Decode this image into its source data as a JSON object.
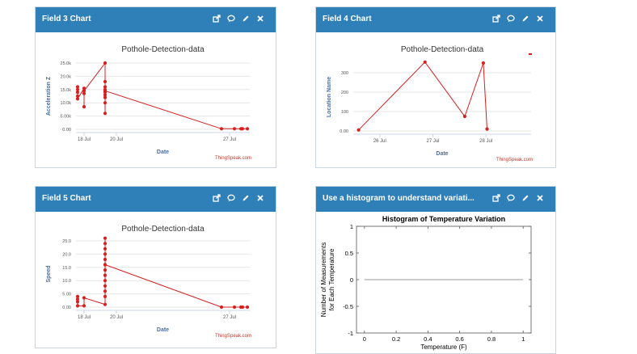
{
  "panels": [
    {
      "key": "f3",
      "title": "Field 3 Chart",
      "chart_data": {
        "type": "line",
        "title": "Pothole-Detection-data",
        "xlabel": "Date",
        "ylabel": "Acceleration Z",
        "credit": "ThingSpeak.com",
        "x_ticks": [
          {
            "label": "18 Jul",
            "x": 18
          },
          {
            "label": "20 Jul",
            "x": 20
          },
          {
            "label": "27 Jul",
            "x": 27
          }
        ],
        "y_ticks": [
          {
            "label": "0.00",
            "y": 0
          },
          {
            "label": "5.00k",
            "y": 5000
          },
          {
            "label": "10.0k",
            "y": 10000
          },
          {
            "label": "15.0k",
            "y": 15000
          },
          {
            "label": "20.0k",
            "y": 20000
          },
          {
            "label": "25.0k",
            "y": 25000
          }
        ],
        "xlim": [
          17.5,
          28.25
        ],
        "ylim": [
          0,
          25000
        ],
        "line_color": "#d62020",
        "points": [
          [
            17.6,
            16000
          ],
          [
            17.6,
            15000
          ],
          [
            17.6,
            14000
          ],
          [
            17.6,
            12500
          ],
          [
            17.6,
            11500
          ],
          [
            18.0,
            15500
          ],
          [
            18.0,
            14500
          ],
          [
            18.0,
            13500
          ],
          [
            18.0,
            8500
          ],
          [
            18.0,
            14500
          ],
          [
            19.3,
            25000
          ],
          [
            19.3,
            18000
          ],
          [
            19.3,
            16000
          ],
          [
            19.3,
            15000
          ],
          [
            19.3,
            14000
          ],
          [
            19.3,
            13000
          ],
          [
            19.3,
            12000
          ],
          [
            19.3,
            10000
          ],
          [
            19.3,
            6000
          ],
          [
            19.3,
            14500
          ],
          [
            26.5,
            200
          ],
          [
            27.3,
            200
          ],
          [
            27.7,
            200
          ],
          [
            27.8,
            200
          ],
          [
            28.1,
            200
          ]
        ]
      }
    },
    {
      "key": "f4",
      "title": "Field 4 Chart",
      "chart_data": {
        "type": "line",
        "title": "Pothole-Detection-data",
        "xlabel": "Date",
        "ylabel": "Location Name",
        "credit": "ThingSpeak.com",
        "x_ticks": [
          {
            "label": "26 Jul",
            "x": 26
          },
          {
            "label": "27 Jul",
            "x": 27
          },
          {
            "label": "28 Jul",
            "x": 28
          }
        ],
        "y_ticks": [
          {
            "label": "0.00",
            "y": 0
          },
          {
            "label": "100",
            "y": 100
          },
          {
            "label": "200",
            "y": 200
          },
          {
            "label": "300",
            "y": 300
          }
        ],
        "xlim": [
          25.5,
          28.85
        ],
        "ylim": [
          0,
          350
        ],
        "line_color": "#d62020",
        "points": [
          [
            25.6,
            5
          ],
          [
            26.85,
            355
          ],
          [
            27.6,
            75
          ],
          [
            27.95,
            350
          ],
          [
            28.02,
            10
          ]
        ]
      }
    },
    {
      "key": "f5",
      "title": "Field 5 Chart",
      "chart_data": {
        "type": "line",
        "title": "Pothole-Detection-data",
        "xlabel": "Date",
        "ylabel": "Speed",
        "credit": "ThingSpeak.com",
        "x_ticks": [
          {
            "label": "18 Jul",
            "x": 18
          },
          {
            "label": "20 Jul",
            "x": 20
          },
          {
            "label": "27 Jul",
            "x": 27
          }
        ],
        "y_ticks": [
          {
            "label": "0.00",
            "y": 0
          },
          {
            "label": "5.00",
            "y": 5
          },
          {
            "label": "10.0",
            "y": 10
          },
          {
            "label": "15.0",
            "y": 15
          },
          {
            "label": "20.0",
            "y": 20
          },
          {
            "label": "25.0",
            "y": 25
          }
        ],
        "xlim": [
          17.5,
          28.25
        ],
        "ylim": [
          0,
          25
        ],
        "line_color": "#d62020",
        "points": [
          [
            17.6,
            4
          ],
          [
            17.6,
            3
          ],
          [
            17.6,
            2
          ],
          [
            17.6,
            0.5
          ],
          [
            18.0,
            0.5
          ],
          [
            18.0,
            3.5
          ],
          [
            19.3,
            1
          ],
          [
            19.3,
            26
          ],
          [
            19.3,
            24
          ],
          [
            19.3,
            22
          ],
          [
            19.3,
            20
          ],
          [
            19.3,
            18
          ],
          [
            19.3,
            16
          ],
          [
            19.3,
            14
          ],
          [
            19.3,
            12
          ],
          [
            19.3,
            10
          ],
          [
            19.3,
            8
          ],
          [
            19.3,
            6
          ],
          [
            19.3,
            4
          ],
          [
            19.3,
            16
          ],
          [
            26.5,
            0
          ],
          [
            27.3,
            0
          ],
          [
            27.7,
            0
          ],
          [
            27.8,
            0
          ],
          [
            28.1,
            0
          ]
        ]
      }
    },
    {
      "key": "hist",
      "title": "Use a histogram to understand variati...",
      "chart_data": {
        "type": "line",
        "title": "Histogram of Temperature Variation",
        "xlabel": "Temperature (F)",
        "ylabel_lines": [
          "Number of Measurements",
          "for Each Temperature"
        ],
        "x_ticks": [
          {
            "label": "0",
            "x": 0
          },
          {
            "label": "0.2",
            "x": 0.2
          },
          {
            "label": "0.4",
            "x": 0.4
          },
          {
            "label": "0.6",
            "x": 0.6
          },
          {
            "label": "0.8",
            "x": 0.8
          },
          {
            "label": "1",
            "x": 1
          }
        ],
        "y_ticks": [
          {
            "label": "-1",
            "y": -1
          },
          {
            "label": "-0.5",
            "y": -0.5
          },
          {
            "label": "0",
            "y": 0
          },
          {
            "label": "0.5",
            "y": 0.5
          },
          {
            "label": "1",
            "y": 1
          }
        ],
        "xlim": [
          -0.05,
          1.05
        ],
        "ylim": [
          -1,
          1
        ],
        "line_color": "#999999",
        "points": [
          [
            0,
            0
          ],
          [
            1,
            0
          ]
        ]
      }
    }
  ]
}
